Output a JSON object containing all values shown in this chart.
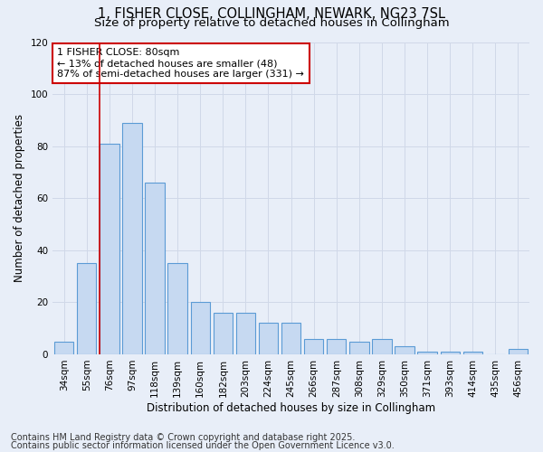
{
  "title_line1": "1, FISHER CLOSE, COLLINGHAM, NEWARK, NG23 7SL",
  "title_line2": "Size of property relative to detached houses in Collingham",
  "xlabel": "Distribution of detached houses by size in Collingham",
  "ylabel": "Number of detached properties",
  "categories": [
    "34sqm",
    "55sqm",
    "76sqm",
    "97sqm",
    "118sqm",
    "139sqm",
    "160sqm",
    "182sqm",
    "203sqm",
    "224sqm",
    "245sqm",
    "266sqm",
    "287sqm",
    "308sqm",
    "329sqm",
    "350sqm",
    "371sqm",
    "393sqm",
    "414sqm",
    "435sqm",
    "456sqm"
  ],
  "values": [
    5,
    35,
    81,
    89,
    66,
    35,
    20,
    16,
    16,
    12,
    12,
    6,
    6,
    5,
    6,
    3,
    1,
    1,
    1,
    0,
    2
  ],
  "bar_color": "#c6d9f1",
  "bar_edge_color": "#5b9bd5",
  "annotation_line1": "1 FISHER CLOSE: 80sqm",
  "annotation_line2": "← 13% of detached houses are smaller (48)",
  "annotation_line3": "87% of semi-detached houses are larger (331) →",
  "annotation_box_facecolor": "#ffffff",
  "annotation_box_edgecolor": "#cc0000",
  "vline_color": "#cc0000",
  "vline_x": 1.575,
  "ylim": [
    0,
    120
  ],
  "yticks": [
    0,
    20,
    40,
    60,
    80,
    100,
    120
  ],
  "grid_color": "#d0d8e8",
  "bg_color": "#e8eef8",
  "footer_text1": "Contains HM Land Registry data © Crown copyright and database right 2025.",
  "footer_text2": "Contains public sector information licensed under the Open Government Licence v3.0.",
  "title_fontsize": 10.5,
  "subtitle_fontsize": 9.5,
  "axis_label_fontsize": 8.5,
  "tick_fontsize": 7.5,
  "annotation_fontsize": 8,
  "footer_fontsize": 7
}
